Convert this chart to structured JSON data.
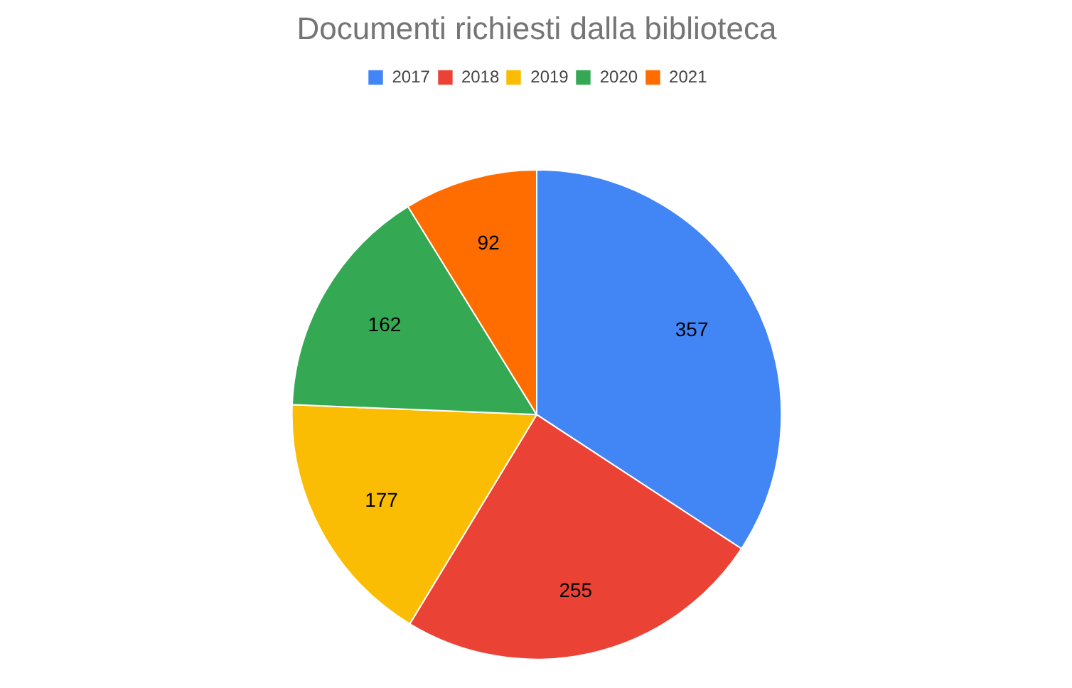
{
  "chart_data": {
    "type": "pie",
    "title": "Documenti richiesti dalla biblioteca",
    "categories": [
      "2017",
      "2018",
      "2019",
      "2020",
      "2021"
    ],
    "values": [
      357,
      255,
      177,
      162,
      92
    ],
    "colors": [
      "#4285f4",
      "#ea4335",
      "#fbbc04",
      "#34a853",
      "#ff6d01"
    ],
    "data_labels": true,
    "legend": "top"
  }
}
